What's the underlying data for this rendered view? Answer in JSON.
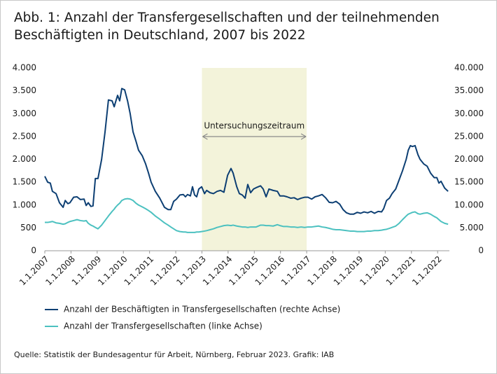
{
  "chart_data": {
    "type": "line",
    "title": "Abb. 1: Anzahl der Transfergesellschaften und der teilnehmenden Beschäftigten in Deutschland, 2007 bis 2022",
    "source": "Quelle: Statistik der Bundesagentur für Arbeit, Nürnberg, Februar 2023. Grafik: IAB",
    "x": [
      2007.0,
      2007.11,
      2007.21,
      2007.29,
      2007.43,
      2007.56,
      2007.7,
      2007.78,
      2007.88,
      2007.96,
      2008.1,
      2008.23,
      2008.36,
      2008.5,
      2008.58,
      2008.66,
      2008.76,
      2008.84,
      2008.93,
      2009.03,
      2009.17,
      2009.3,
      2009.43,
      2009.57,
      2009.65,
      2009.7,
      2009.78,
      2009.86,
      2009.94,
      2010.05,
      2010.16,
      2010.26,
      2010.37,
      2010.48,
      2010.58,
      2010.72,
      2010.85,
      2010.96,
      2011.06,
      2011.22,
      2011.39,
      2011.57,
      2011.71,
      2011.81,
      2011.92,
      2012.03,
      2012.16,
      2012.29,
      2012.37,
      2012.45,
      2012.56,
      2012.64,
      2012.72,
      2012.8,
      2012.88,
      2012.99,
      2013.1,
      2013.18,
      2013.31,
      2013.44,
      2013.58,
      2013.71,
      2013.84,
      2013.98,
      2014.11,
      2014.19,
      2014.33,
      2014.43,
      2014.54,
      2014.65,
      2014.75,
      2014.86,
      2014.97,
      2015.07,
      2015.24,
      2015.34,
      2015.45,
      2015.56,
      2015.72,
      2015.88,
      2015.98,
      2016.12,
      2016.25,
      2016.39,
      2016.52,
      2016.65,
      2016.79,
      2016.92,
      2017.05,
      2017.19,
      2017.32,
      2017.45,
      2017.59,
      2017.72,
      2017.86,
      2017.99,
      2018.12,
      2018.26,
      2018.39,
      2018.52,
      2018.66,
      2018.79,
      2018.93,
      2019.06,
      2019.19,
      2019.33,
      2019.46,
      2019.59,
      2019.73,
      2019.86,
      2019.94,
      2020.05,
      2020.16,
      2020.26,
      2020.4,
      2020.53,
      2020.66,
      2020.8,
      2020.88,
      2020.96,
      2021.04,
      2021.14,
      2021.25,
      2021.33,
      2021.47,
      2021.6,
      2021.73,
      2021.87,
      2021.97,
      2022.05,
      2022.13,
      2022.27,
      2022.4
    ],
    "series": [
      {
        "name": "Anzahl der Beschäftigten in Transfergesellschaften (rechte Achse)",
        "color": "#0d3f73",
        "axis": "y2",
        "values": [
          16300,
          15000,
          14800,
          13000,
          12500,
          10500,
          9500,
          11000,
          10300,
          10500,
          11700,
          11800,
          11200,
          11300,
          9900,
          10500,
          9700,
          9800,
          15800,
          15800,
          20000,
          26000,
          33000,
          32800,
          31500,
          32500,
          34000,
          32800,
          35500,
          35200,
          32800,
          30000,
          26000,
          24000,
          22000,
          20800,
          19000,
          17000,
          15000,
          13000,
          11500,
          9500,
          9000,
          9000,
          10800,
          11300,
          12200,
          12300,
          11800,
          12300,
          12000,
          14000,
          12200,
          11800,
          13500,
          14000,
          12500,
          13200,
          12700,
          12500,
          13000,
          13200,
          12800,
          16500,
          18000,
          17000,
          14000,
          12500,
          12200,
          11500,
          14500,
          12700,
          13500,
          13800,
          14200,
          13500,
          11800,
          13500,
          13200,
          13000,
          12000,
          12000,
          11800,
          11500,
          11600,
          11200,
          11500,
          11700,
          11700,
          11300,
          11800,
          12000,
          12300,
          11600,
          10600,
          10500,
          10800,
          10200,
          9000,
          8300,
          8000,
          8000,
          8400,
          8200,
          8500,
          8300,
          8600,
          8200,
          8600,
          8500,
          9200,
          11000,
          11500,
          12500,
          13500,
          15500,
          17500,
          20000,
          22000,
          23000,
          22800,
          23000,
          21000,
          20000,
          19000,
          18500,
          17000,
          16000,
          16000,
          14800,
          15200,
          13700,
          13000
        ]
      },
      {
        "name": "Anzahl der Transfergesellschaften (linke Achse)",
        "color": "#4cc1c0",
        "values": [
          620,
          620,
          630,
          640,
          610,
          600,
          580,
          590,
          620,
          640,
          660,
          680,
          660,
          650,
          660,
          600,
          560,
          540,
          510,
          480,
          560,
          660,
          760,
          860,
          910,
          950,
          1000,
          1040,
          1100,
          1130,
          1140,
          1130,
          1100,
          1040,
          1000,
          960,
          920,
          880,
          840,
          760,
          690,
          610,
          560,
          520,
          480,
          440,
          420,
          410,
          410,
          400,
          400,
          400,
          400,
          410,
          410,
          420,
          430,
          440,
          460,
          480,
          510,
          530,
          550,
          560,
          550,
          560,
          540,
          530,
          520,
          520,
          510,
          520,
          520,
          520,
          560,
          560,
          550,
          550,
          540,
          570,
          550,
          530,
          530,
          520,
          520,
          510,
          520,
          510,
          520,
          520,
          530,
          540,
          520,
          510,
          490,
          470,
          460,
          460,
          450,
          440,
          430,
          430,
          420,
          420,
          420,
          430,
          430,
          440,
          440,
          450,
          460,
          470,
          490,
          510,
          540,
          600,
          680,
          760,
          800,
          820,
          840,
          850,
          810,
          800,
          820,
          830,
          800,
          750,
          720,
          680,
          640,
          600,
          580
        ]
      }
    ],
    "shaded_region": {
      "x": [
        2013,
        2017
      ],
      "label": "Untersuchungszeitraum",
      "color": "#f3f3da"
    },
    "xlim": [
      2007,
      2022.45
    ],
    "xticks": [
      {
        "value": 2007,
        "label": "1.1.2007"
      },
      {
        "value": 2008,
        "label": "1.1.2008"
      },
      {
        "value": 2009,
        "label": "1.1.2009"
      },
      {
        "value": 2010,
        "label": "1.1.2010"
      },
      {
        "value": 2011,
        "label": "1.1.2011"
      },
      {
        "value": 2012,
        "label": "1.1.2012"
      },
      {
        "value": 2013,
        "label": "1.1.2013"
      },
      {
        "value": 2014,
        "label": "1.1.2014"
      },
      {
        "value": 2015,
        "label": "1.1.2015"
      },
      {
        "value": 2016,
        "label": "1.1.2016"
      },
      {
        "value": 2017,
        "label": "1.1.2017"
      },
      {
        "value": 2018,
        "label": "1.1.2018"
      },
      {
        "value": 2019,
        "label": "1.1.2019"
      },
      {
        "value": 2020,
        "label": "1.1.2020"
      },
      {
        "value": 2021,
        "label": "1.1.2021"
      },
      {
        "value": 2022,
        "label": "1.1.2022"
      }
    ],
    "ylim": [
      0,
      4000
    ],
    "yticks": [
      0,
      500,
      {
        "value": 1000,
        "label": "1.000"
      },
      {
        "value": 1500,
        "label": "1.500"
      },
      {
        "value": 2000,
        "label": "2.000"
      },
      {
        "value": 2500,
        "label": "2.500"
      },
      {
        "value": 3000,
        "label": "3.000"
      },
      {
        "value": 3500,
        "label": "3.500"
      },
      {
        "value": 4000,
        "label": "4.000"
      }
    ],
    "y2lim": [
      0,
      40000
    ],
    "y2ticks": [
      0,
      {
        "value": 5000,
        "label": "5.000"
      },
      {
        "value": 10000,
        "label": "10.000"
      },
      {
        "value": 15000,
        "label": "15.000"
      },
      {
        "value": 20000,
        "label": "20.000"
      },
      {
        "value": 25000,
        "label": "25.000"
      },
      {
        "value": 30000,
        "label": "30.000"
      },
      {
        "value": 35000,
        "label": "35.000"
      },
      {
        "value": 40000,
        "label": "40.000"
      }
    ],
    "grid": false
  }
}
